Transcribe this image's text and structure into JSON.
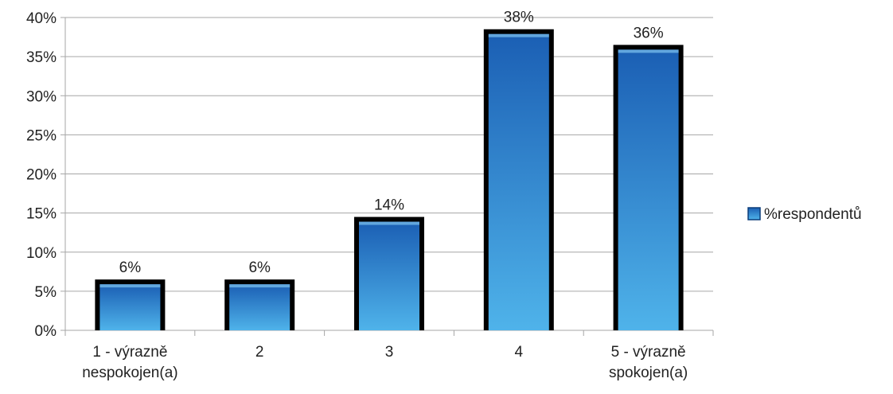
{
  "chart_data": {
    "type": "bar",
    "title": "",
    "xlabel": "",
    "ylabel": "",
    "categories": [
      [
        "1 - výrazně",
        "nespokojen(a)"
      ],
      [
        "2"
      ],
      [
        "3"
      ],
      [
        "4"
      ],
      [
        "5 - výrazně",
        "spokojen(a)"
      ]
    ],
    "series": [
      {
        "name": "%respondentů",
        "values": [
          6.5,
          6.5,
          14.5,
          38.5,
          36.5
        ],
        "labels": [
          "6%",
          "6%",
          "14%",
          "38%",
          "36%"
        ]
      }
    ],
    "ylim": [
      0,
      40
    ],
    "yticks": [
      0,
      5,
      10,
      15,
      20,
      25,
      30,
      35,
      40
    ],
    "ytick_labels": [
      "0%",
      "5%",
      "10%",
      "15%",
      "20%",
      "25%",
      "30%",
      "35%",
      "40%"
    ],
    "grid": true,
    "legend_position": "right",
    "colors": {
      "bar_fill_top": "#1b5fb4",
      "bar_fill_bottom": "#4fb3ea",
      "bar_outline": "#000000",
      "grid": "#a6a6a6",
      "axis": "#a6a6a6"
    }
  }
}
